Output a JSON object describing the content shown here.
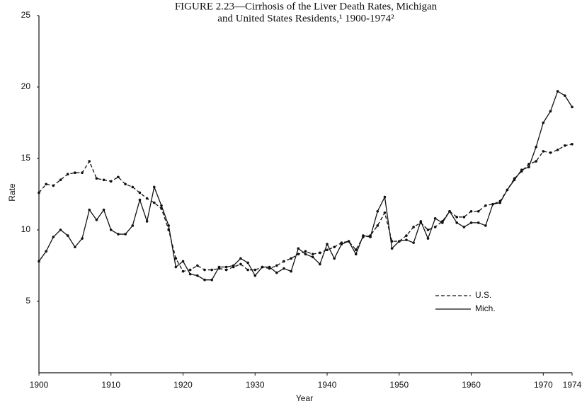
{
  "chart_data": {
    "type": "line",
    "title": [
      "FIGURE 2.23—Cirrhosis of the Liver Death Rates, Michigan",
      "and United States Residents,¹ 1900-1974²"
    ],
    "x_label": "Year",
    "y_label": "Rate",
    "x": [
      1900,
      1901,
      1902,
      1903,
      1904,
      1905,
      1906,
      1907,
      1908,
      1909,
      1910,
      1911,
      1912,
      1913,
      1914,
      1915,
      1916,
      1917,
      1918,
      1919,
      1920,
      1921,
      1922,
      1923,
      1924,
      1925,
      1926,
      1927,
      1928,
      1929,
      1930,
      1931,
      1932,
      1933,
      1934,
      1935,
      1936,
      1937,
      1938,
      1939,
      1940,
      1941,
      1942,
      1943,
      1944,
      1945,
      1946,
      1947,
      1948,
      1949,
      1950,
      1951,
      1952,
      1953,
      1954,
      1955,
      1956,
      1957,
      1958,
      1959,
      1960,
      1961,
      1962,
      1963,
      1964,
      1965,
      1966,
      1967,
      1968,
      1969,
      1970,
      1971,
      1972,
      1973,
      1974
    ],
    "series": [
      {
        "name": "U.S.",
        "color": "#111111",
        "dash": "dashed",
        "values": [
          12.6,
          13.2,
          13.1,
          13.5,
          13.9,
          14.0,
          14.0,
          14.8,
          13.6,
          13.5,
          13.4,
          13.7,
          13.2,
          13.0,
          12.6,
          12.2,
          11.9,
          11.5,
          10.0,
          8.0,
          7.1,
          7.2,
          7.5,
          7.2,
          7.2,
          7.3,
          7.2,
          7.4,
          7.6,
          7.2,
          7.2,
          7.4,
          7.3,
          7.5,
          7.8,
          8.0,
          8.3,
          8.5,
          8.3,
          8.4,
          8.6,
          8.8,
          9.1,
          9.2,
          8.6,
          9.5,
          9.6,
          10.3,
          11.2,
          9.2,
          9.2,
          9.6,
          10.2,
          10.5,
          10.0,
          10.2,
          10.6,
          11.3,
          10.9,
          10.9,
          11.3,
          11.3,
          11.7,
          11.8,
          12.0,
          12.8,
          13.6,
          14.1,
          14.6,
          14.8,
          15.5,
          15.4,
          15.6,
          15.9,
          16.0
        ]
      },
      {
        "name": "Mich.",
        "color": "#111111",
        "dash": "solid",
        "values": [
          7.8,
          8.5,
          9.5,
          10.0,
          9.6,
          8.8,
          9.4,
          11.4,
          10.7,
          11.4,
          10.0,
          9.7,
          9.7,
          10.3,
          12.1,
          10.6,
          13.0,
          11.7,
          10.3,
          7.4,
          7.8,
          6.9,
          6.8,
          6.5,
          6.5,
          7.4,
          7.4,
          7.5,
          8.0,
          7.7,
          6.8,
          7.4,
          7.4,
          7.0,
          7.3,
          7.1,
          8.7,
          8.3,
          8.1,
          7.6,
          9.0,
          8.0,
          9.0,
          9.2,
          8.3,
          9.6,
          9.5,
          11.3,
          12.3,
          8.7,
          9.2,
          9.3,
          9.1,
          10.6,
          9.4,
          10.8,
          10.5,
          11.3,
          10.5,
          10.2,
          10.5,
          10.5,
          10.3,
          11.8,
          11.9,
          12.8,
          13.5,
          14.2,
          14.4,
          15.8,
          17.5,
          18.3,
          19.7,
          19.4,
          18.6
        ]
      }
    ],
    "xlim": [
      1900,
      1974
    ],
    "xticks": [
      1900,
      1910,
      1920,
      1930,
      1940,
      1950,
      1960,
      1970,
      1974
    ],
    "ylim": [
      0,
      25
    ],
    "yticks": [
      5,
      10,
      15,
      20,
      25
    ],
    "grid": false,
    "legend": "lower right"
  }
}
